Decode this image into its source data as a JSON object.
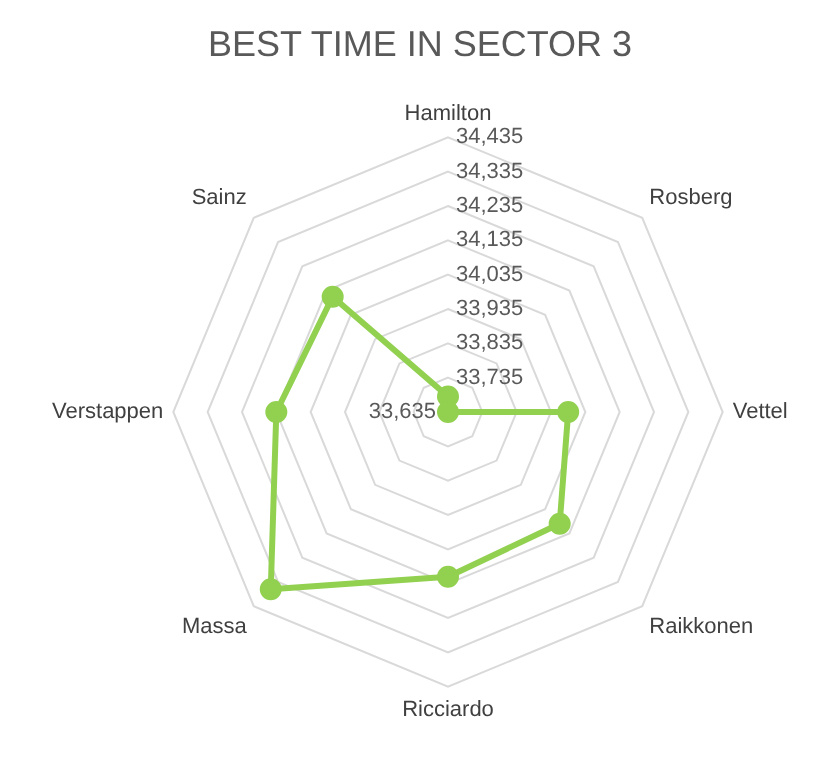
{
  "chart_data": {
    "type": "radar",
    "title": "BEST TIME IN SECTOR 3",
    "categories": [
      "Hamilton",
      "Rosberg",
      "Vettel",
      "Raikkonen",
      "Ricciardo",
      "Massa",
      "Verstappen",
      "Sainz"
    ],
    "series": [
      {
        "color": "#92d050",
        "values": [
          33680,
          33635,
          33985,
          34095,
          34115,
          34365,
          34135,
          34110
        ]
      }
    ],
    "ylim": [
      33635,
      34435
    ],
    "yticks": [
      {
        "value": 33635,
        "label": "33,635"
      },
      {
        "value": 33735,
        "label": "33,735"
      },
      {
        "value": 33835,
        "label": "33,835"
      },
      {
        "value": 33935,
        "label": "33,935"
      },
      {
        "value": 34035,
        "label": "34,035"
      },
      {
        "value": 34135,
        "label": "34,135"
      },
      {
        "value": 34235,
        "label": "34,235"
      },
      {
        "value": 34335,
        "label": "34,335"
      },
      {
        "value": 34435,
        "label": "34,435"
      }
    ],
    "grid": true,
    "marker": "circle",
    "legend": false
  }
}
